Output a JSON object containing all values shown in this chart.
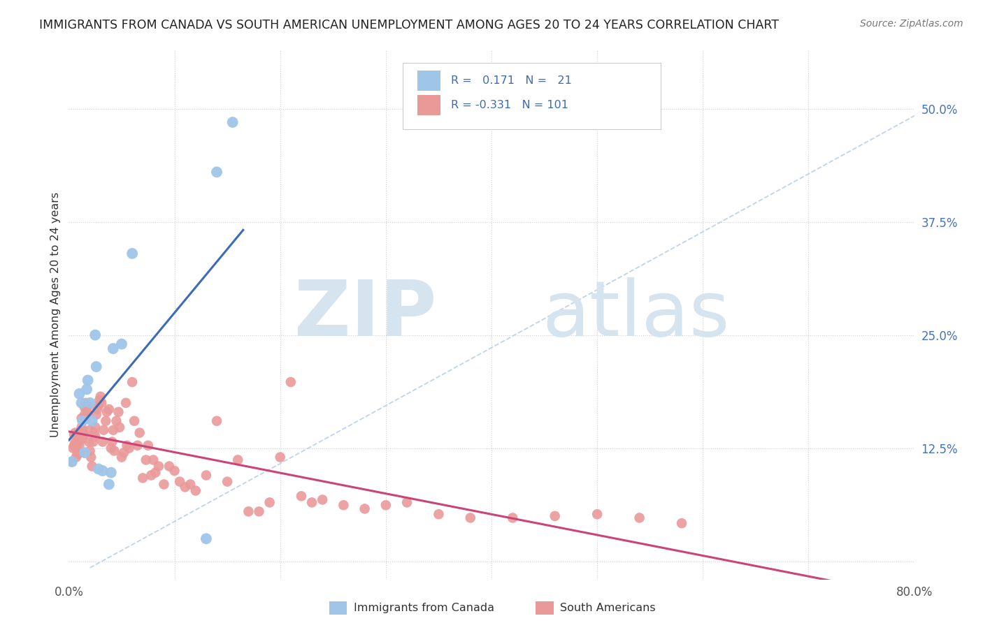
{
  "title": "IMMIGRANTS FROM CANADA VS SOUTH AMERICAN UNEMPLOYMENT AMONG AGES 20 TO 24 YEARS CORRELATION CHART",
  "source": "Source: ZipAtlas.com",
  "ylabel": "Unemployment Among Ages 20 to 24 years",
  "xlim": [
    0.0,
    0.8
  ],
  "ylim": [
    -0.02,
    0.565
  ],
  "y_ticks_right": [
    0.0,
    0.125,
    0.25,
    0.375,
    0.5
  ],
  "y_tick_labels_right": [
    "",
    "12.5%",
    "25.0%",
    "37.5%",
    "50.0%"
  ],
  "canada_color": "#9fc5e8",
  "south_color": "#ea9999",
  "canada_line_color": "#3d6bb5",
  "south_line_color": "#cc4477",
  "diag_line_color": "#b0c8e8",
  "background_color": "#ffffff",
  "canada_points_x": [
    0.003,
    0.01,
    0.012,
    0.013,
    0.015,
    0.017,
    0.018,
    0.02,
    0.022,
    0.025,
    0.026,
    0.028,
    0.032,
    0.038,
    0.04,
    0.042,
    0.05,
    0.06,
    0.13,
    0.14,
    0.155
  ],
  "canada_points_y": [
    0.11,
    0.185,
    0.175,
    0.155,
    0.12,
    0.19,
    0.2,
    0.175,
    0.155,
    0.25,
    0.215,
    0.102,
    0.1,
    0.085,
    0.098,
    0.235,
    0.24,
    0.34,
    0.025,
    0.43,
    0.485
  ],
  "south_points_x": [
    0.003,
    0.004,
    0.005,
    0.005,
    0.006,
    0.006,
    0.007,
    0.007,
    0.008,
    0.008,
    0.009,
    0.009,
    0.01,
    0.01,
    0.011,
    0.011,
    0.012,
    0.012,
    0.013,
    0.013,
    0.014,
    0.015,
    0.015,
    0.016,
    0.016,
    0.017,
    0.018,
    0.018,
    0.019,
    0.02,
    0.02,
    0.021,
    0.022,
    0.023,
    0.024,
    0.025,
    0.025,
    0.026,
    0.027,
    0.028,
    0.029,
    0.03,
    0.031,
    0.032,
    0.033,
    0.035,
    0.036,
    0.038,
    0.04,
    0.041,
    0.042,
    0.043,
    0.045,
    0.047,
    0.048,
    0.05,
    0.052,
    0.054,
    0.055,
    0.057,
    0.06,
    0.062,
    0.065,
    0.067,
    0.07,
    0.073,
    0.075,
    0.078,
    0.08,
    0.082,
    0.085,
    0.09,
    0.095,
    0.1,
    0.105,
    0.11,
    0.115,
    0.12,
    0.13,
    0.14,
    0.15,
    0.16,
    0.17,
    0.18,
    0.19,
    0.2,
    0.21,
    0.22,
    0.23,
    0.24,
    0.26,
    0.28,
    0.3,
    0.32,
    0.35,
    0.38,
    0.42,
    0.46,
    0.5,
    0.54,
    0.58
  ],
  "south_points_y": [
    0.11,
    0.125,
    0.128,
    0.14,
    0.132,
    0.142,
    0.115,
    0.125,
    0.118,
    0.13,
    0.122,
    0.132,
    0.128,
    0.142,
    0.12,
    0.138,
    0.148,
    0.158,
    0.135,
    0.145,
    0.14,
    0.162,
    0.17,
    0.175,
    0.158,
    0.168,
    0.162,
    0.172,
    0.132,
    0.122,
    0.145,
    0.115,
    0.105,
    0.132,
    0.142,
    0.138,
    0.148,
    0.162,
    0.168,
    0.172,
    0.178,
    0.182,
    0.175,
    0.132,
    0.145,
    0.155,
    0.165,
    0.168,
    0.125,
    0.132,
    0.145,
    0.122,
    0.155,
    0.165,
    0.148,
    0.115,
    0.12,
    0.175,
    0.128,
    0.125,
    0.198,
    0.155,
    0.128,
    0.142,
    0.092,
    0.112,
    0.128,
    0.095,
    0.112,
    0.098,
    0.105,
    0.085,
    0.105,
    0.1,
    0.088,
    0.082,
    0.085,
    0.078,
    0.095,
    0.155,
    0.088,
    0.112,
    0.055,
    0.055,
    0.065,
    0.115,
    0.198,
    0.072,
    0.065,
    0.068,
    0.062,
    0.058,
    0.062,
    0.065,
    0.052,
    0.048,
    0.048,
    0.05,
    0.052,
    0.048,
    0.042
  ]
}
